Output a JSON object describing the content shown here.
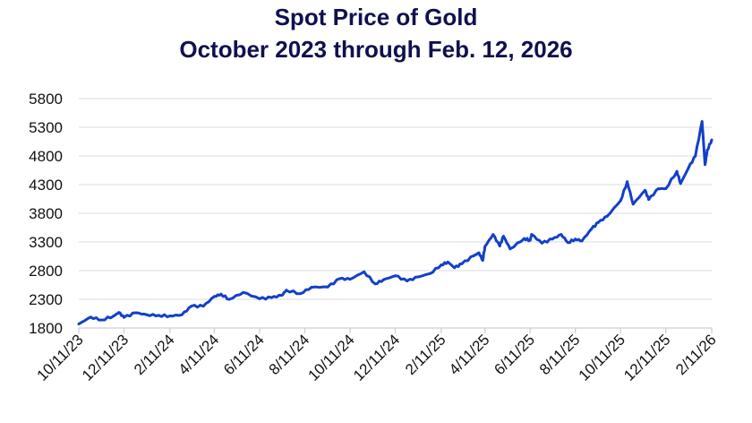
{
  "chart_data": {
    "type": "line",
    "title": "Spot Price of Gold",
    "subtitle": "October 2023 through Feb. 12, 2026",
    "xlabel": "",
    "ylabel": "",
    "ylim": [
      1800,
      5800
    ],
    "yticks": [
      1800,
      2300,
      2800,
      3300,
      3800,
      4300,
      4800,
      5300,
      5800
    ],
    "xlim": [
      "2023-10-11",
      "2026-02-11"
    ],
    "xticks": [
      "10/11/23",
      "12/11/23",
      "2/11/24",
      "4/11/24",
      "6/11/24",
      "8/11/24",
      "10/11/24",
      "12/11/24",
      "2/11/25",
      "4/11/25",
      "6/11/25",
      "8/11/25",
      "10/11/25",
      "12/11/25",
      "2/11/26"
    ],
    "grid": "horizontal",
    "line_color": "#1340c8",
    "series": [
      {
        "x": [
          "2023-10-11",
          "2023-10-27",
          "2023-11-11",
          "2023-11-27",
          "2023-12-04",
          "2023-12-11",
          "2023-12-27",
          "2024-01-11",
          "2024-01-27",
          "2024-02-11",
          "2024-02-27",
          "2024-03-11",
          "2024-03-27",
          "2024-04-11",
          "2024-04-20",
          "2024-05-01",
          "2024-05-20",
          "2024-06-11",
          "2024-06-27",
          "2024-07-11",
          "2024-07-17",
          "2024-08-05",
          "2024-08-20",
          "2024-09-11",
          "2024-09-27",
          "2024-10-11",
          "2024-10-30",
          "2024-11-14",
          "2024-11-25",
          "2024-12-11",
          "2024-12-27",
          "2025-01-11",
          "2025-01-27",
          "2025-02-11",
          "2025-02-20",
          "2025-03-01",
          "2025-03-11",
          "2025-03-27",
          "2025-04-03",
          "2025-04-08",
          "2025-04-11",
          "2025-04-22",
          "2025-05-01",
          "2025-05-06",
          "2025-05-15",
          "2025-06-03",
          "2025-06-11",
          "2025-06-13",
          "2025-06-27",
          "2025-07-11",
          "2025-07-23",
          "2025-08-01",
          "2025-08-11",
          "2025-08-20",
          "2025-09-02",
          "2025-09-11",
          "2025-09-23",
          "2025-10-11",
          "2025-10-20",
          "2025-10-28",
          "2025-11-13",
          "2025-11-18",
          "2025-12-01",
          "2025-12-11",
          "2025-12-26",
          "2025-12-31",
          "2026-01-11",
          "2026-01-20",
          "2026-01-29",
          "2026-02-02",
          "2026-02-05",
          "2026-02-11"
        ],
        "values": [
          1870,
          1990,
          1940,
          2010,
          2070,
          1985,
          2065,
          2030,
          2020,
          2010,
          2030,
          2180,
          2180,
          2350,
          2390,
          2300,
          2420,
          2310,
          2330,
          2370,
          2460,
          2400,
          2510,
          2515,
          2660,
          2650,
          2780,
          2570,
          2640,
          2710,
          2620,
          2690,
          2750,
          2900,
          2950,
          2850,
          2920,
          3060,
          3110,
          2980,
          3220,
          3430,
          3230,
          3400,
          3180,
          3360,
          3330,
          3430,
          3280,
          3350,
          3430,
          3290,
          3350,
          3320,
          3530,
          3640,
          3750,
          4020,
          4350,
          3960,
          4200,
          4040,
          4230,
          4230,
          4530,
          4320,
          4600,
          4800,
          5400,
          4650,
          4900,
          5080
        ]
      }
    ]
  }
}
